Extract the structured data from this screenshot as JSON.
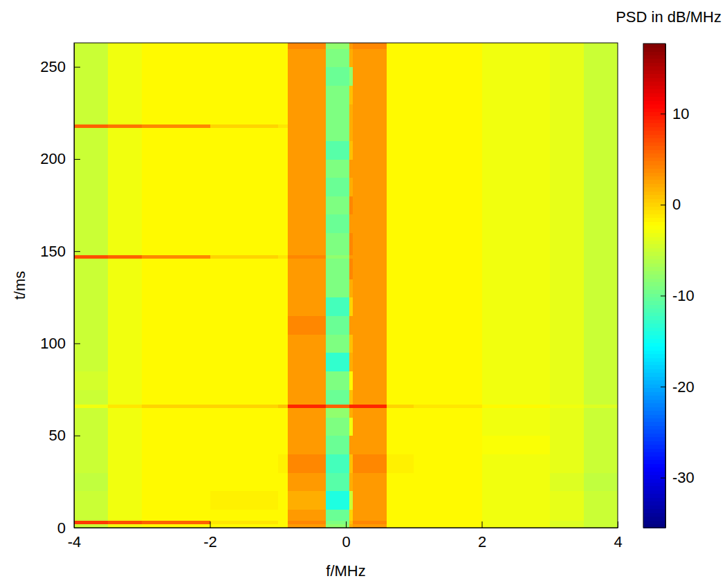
{
  "chart_data": {
    "type": "heatmap",
    "xlabel": "f/MHz",
    "ylabel": "t/ms",
    "xlim": [
      -4,
      4
    ],
    "xticks": [
      -4,
      -2,
      0,
      2,
      4
    ],
    "ylim": [
      0,
      263
    ],
    "yticks": [
      0,
      50,
      100,
      150,
      200,
      250
    ],
    "x_edges": [
      -4,
      -3.5,
      -3,
      -2,
      -1,
      -0.85,
      -0.3,
      0.05,
      0.1,
      0.6,
      1,
      2,
      3,
      3.5,
      4
    ],
    "y_edges": [
      0,
      2,
      4,
      10,
      20,
      30,
      40,
      50,
      60,
      65,
      67,
      75,
      85,
      95,
      105,
      115,
      125,
      135,
      146,
      148,
      160,
      170,
      180,
      190,
      200,
      210,
      217,
      219,
      230,
      240,
      250,
      260,
      263
    ],
    "z": [
      [
        -5,
        -3,
        -2,
        -2,
        -2,
        3,
        -8,
        2,
        3,
        -2,
        -2,
        -3,
        -4,
        -5
      ],
      [
        8,
        7,
        6,
        -1,
        -2,
        4,
        -9,
        1,
        4,
        -2,
        -2,
        -3,
        -4,
        -5
      ],
      [
        -5,
        -3,
        -2,
        -2,
        -2,
        3,
        -10,
        0,
        3,
        -2,
        -2,
        -3,
        -3.5,
        -5
      ],
      [
        -5,
        -3,
        -2,
        -1.5,
        -2,
        2,
        -14,
        -5,
        3,
        -2,
        -2,
        -3,
        -3.5,
        -5
      ],
      [
        -5.5,
        -3,
        -2,
        -2,
        -2,
        3,
        -11,
        2,
        3,
        -2,
        -2,
        -3,
        -4,
        -5.5
      ],
      [
        -5,
        -3,
        -2,
        -2,
        -1.5,
        4,
        -12,
        1,
        4,
        -1.5,
        -2,
        -3,
        -3.5,
        -5
      ],
      [
        -5,
        -3,
        -2,
        -2,
        -2,
        3,
        -10,
        3,
        3,
        -2,
        -2,
        -2.5,
        -3.5,
        -5
      ],
      [
        -5,
        -3,
        -2,
        -2,
        -2,
        3,
        -9,
        -3,
        3,
        -2,
        -2,
        -3,
        -3.5,
        -5
      ],
      [
        -5,
        -3,
        -2,
        -2,
        -2,
        3,
        -8,
        2,
        3,
        -2,
        -2,
        -3,
        -3.5,
        -5
      ],
      [
        -3,
        -1,
        0,
        0,
        1,
        9,
        6,
        9,
        9,
        0,
        -1,
        -2,
        -3,
        -4
      ],
      [
        -5,
        -3,
        -2,
        -2,
        -2,
        3,
        -10,
        1,
        3,
        -2,
        -2,
        -3,
        -3.5,
        -5
      ],
      [
        -4.5,
        -3,
        -2,
        -2,
        -2,
        3,
        -9,
        -2,
        3,
        -2,
        -2,
        -3,
        -3.5,
        -5
      ],
      [
        -5,
        -3,
        -2,
        -2,
        -2,
        3,
        -13,
        2,
        3,
        -2,
        -2,
        -3,
        -3.5,
        -5
      ],
      [
        -5,
        -3,
        -2,
        -2,
        -2,
        3,
        -9,
        1,
        3,
        -2,
        -2,
        -3,
        -3.5,
        -5
      ],
      [
        -5,
        -3,
        -2,
        -2,
        -2,
        4,
        -10,
        3,
        3,
        -2,
        -2,
        -3,
        -3.5,
        -5
      ],
      [
        -5,
        -3,
        -2,
        -2,
        -2,
        3,
        -12,
        0,
        3,
        -2,
        -2,
        -3,
        -3.5,
        -5
      ],
      [
        -5,
        -3,
        -2,
        -2,
        -2,
        3,
        -9,
        2,
        3,
        -2,
        -2,
        -3,
        -3.5,
        -5
      ],
      [
        -5,
        -3,
        -2,
        -2,
        -2,
        3,
        -9,
        4,
        3,
        -2,
        -2,
        -3,
        -3.5,
        -5
      ],
      [
        7,
        6,
        4,
        0,
        -1,
        4,
        -8,
        3,
        3,
        -2,
        -2,
        -3,
        -3.5,
        -5
      ],
      [
        -5,
        -3,
        -2,
        -2,
        -2,
        3,
        -9,
        4,
        3,
        -2,
        -2,
        -3,
        -3.5,
        -5
      ],
      [
        -5,
        -3,
        -2,
        -2,
        -2,
        3,
        -10,
        3,
        3,
        -2,
        -2,
        -3,
        -3.5,
        -5
      ],
      [
        -5,
        -3,
        -2,
        -2,
        -2,
        3,
        -9,
        4,
        3,
        -2,
        -2,
        -3,
        -3.5,
        -5
      ],
      [
        -5,
        -3,
        -2,
        -2,
        -2,
        3,
        -10,
        2,
        3,
        -2,
        -2,
        -3,
        -3.5,
        -5
      ],
      [
        -5,
        -3,
        -2,
        -2,
        -2,
        3,
        -9,
        3,
        3,
        -2,
        -2,
        -3,
        -3.5,
        -5
      ],
      [
        -5,
        -3,
        -2,
        -2,
        -2,
        3,
        -11,
        1,
        3,
        -2,
        -2,
        -3,
        -3.5,
        -5
      ],
      [
        -5,
        -3,
        -2,
        -2,
        -2,
        3,
        -9,
        2,
        3,
        -2,
        -2,
        -3,
        -3.5,
        -5
      ],
      [
        6,
        5,
        4,
        0,
        -1,
        3,
        -9,
        2,
        3,
        -2,
        -2,
        -3,
        -3.5,
        -5
      ],
      [
        -5,
        -3,
        -2,
        -2,
        -2,
        3,
        -9,
        2,
        3,
        -2,
        -2,
        -3,
        -3.5,
        -5
      ],
      [
        -5,
        -3,
        -2,
        -2,
        -2,
        3,
        -9,
        1,
        3,
        -2,
        -2,
        -3,
        -3.5,
        -5
      ],
      [
        -5,
        -3,
        -2,
        -2,
        -2,
        3,
        -10,
        -8,
        3,
        -2,
        -2,
        -3,
        -3.5,
        -5
      ],
      [
        -5,
        -3,
        -2,
        -2,
        -2,
        3,
        -9,
        2,
        3,
        -2,
        -2,
        -3,
        -3.5,
        -5
      ],
      [
        -5,
        -3,
        -2,
        -2,
        -2,
        4,
        -8,
        3,
        4,
        -2,
        -2,
        -3,
        -3.5,
        -5
      ]
    ],
    "colorbar": {
      "label": "PSD in dB/MHz",
      "range": [
        -35.5,
        17.7
      ],
      "ticks": [
        -30,
        -20,
        -10,
        0,
        10
      ]
    }
  }
}
